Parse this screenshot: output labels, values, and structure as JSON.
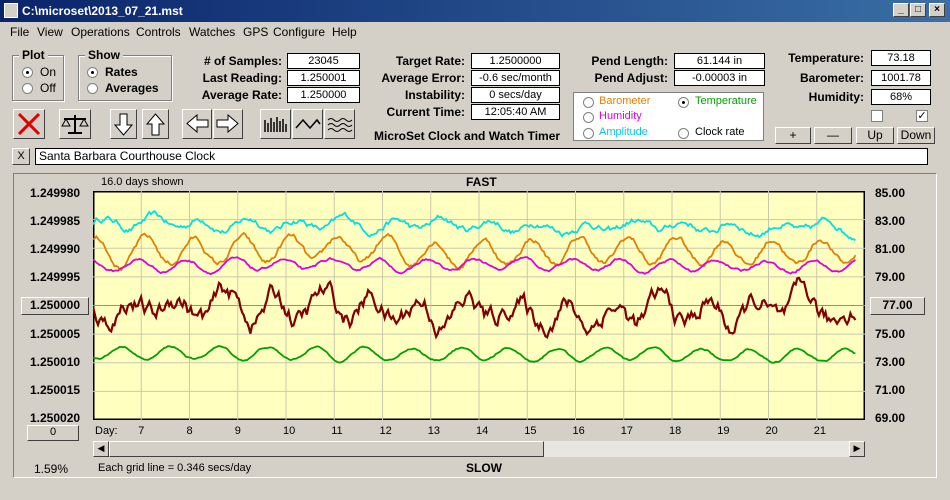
{
  "window": {
    "title": "C:\\microset\\2013_07_21.mst"
  },
  "menu": [
    "File",
    "View",
    "Operations",
    "Controls",
    "Watches",
    "GPS",
    "Configure",
    "Help"
  ],
  "plot_group": {
    "title": "Plot",
    "on_label": "On",
    "off_label": "Off",
    "selected": "On"
  },
  "show_group": {
    "title": "Show",
    "rates_label": "Rates",
    "averages_label": "Averages",
    "selected": "Rates"
  },
  "stats": {
    "samples_label": "# of Samples:",
    "samples_value": "23045",
    "last_reading_label": "Last Reading:",
    "last_reading_value": "1.250001",
    "average_rate_label": "Average Rate:",
    "average_rate_value": "1.250000",
    "target_rate_label": "Target Rate:",
    "target_rate_value": "1.2500000",
    "average_error_label": "Average Error:",
    "average_error_value": "-0.6 sec/month",
    "instability_label": "Instability:",
    "instability_value": "0 secs/day",
    "current_time_label": "Current Time:",
    "current_time_value": "12:05:40 AM",
    "pend_length_label": "Pend Length:",
    "pend_length_value": "61.144 in",
    "pend_adjust_label": "Pend Adjust:",
    "pend_adjust_value": "-0.00003 in",
    "temperature_label": "Temperature:",
    "temperature_value": "73.18",
    "barometer_label": "Barometer:",
    "barometer_value": "1001.78",
    "humidity_label": "Humidity:",
    "humidity_value": "68%"
  },
  "app_caption": "MicroSet Clock and Watch Timer",
  "legend": {
    "barometer": "Barometer",
    "temperature": "Temperature",
    "humidity": "Humidity",
    "amplitude": "Amplitude",
    "clock_rate": "Clock rate",
    "selected": "Temperature"
  },
  "adjust_buttons": {
    "plus": "+",
    "minus": "—",
    "up": "Up",
    "down": "Down"
  },
  "clock_name": "Santa Barbara Courthouse Clock",
  "close_clock": "X",
  "plot": {
    "days_shown": "16.0 days shown",
    "fast_label": "FAST",
    "slow_label": "SLOW",
    "grid_note": "Each grid line = 0.346 secs/day",
    "percent": "1.59%",
    "center_button": "1.250000",
    "zero_button": "0",
    "right_button": "77.00",
    "day_label": "Day:"
  },
  "colors": {
    "temperature": "#00a000",
    "barometer": "#e08000",
    "humidity": "#e000e0",
    "amplitude": "#00e0e0",
    "clock_rate": "#800000",
    "plot_bg": "#ffffc0"
  },
  "chart_data": {
    "type": "line",
    "x_label": "Day:",
    "x_ticks": [
      7,
      8,
      9,
      10,
      11,
      12,
      13,
      14,
      15,
      16,
      17,
      18,
      19,
      20,
      21
    ],
    "left_ticks": [
      "1.249980",
      "1.249985",
      "1.249990",
      "1.249995",
      "1.250000",
      "1.250005",
      "1.250010",
      "1.250015",
      "1.250020"
    ],
    "right_ticks": [
      "85.00",
      "83.00",
      "81.00",
      "79.00",
      "77.00",
      "75.00",
      "73.00",
      "71.00",
      "69.00"
    ],
    "xlim": [
      6.0,
      22.0
    ],
    "ylim_left": [
      1.24998,
      1.25002
    ],
    "ylim_right": [
      69,
      85
    ],
    "series": [
      {
        "name": "Amplitude",
        "color": "#00e0e0",
        "base": 82.8,
        "wave": 0.35,
        "noise": 0.35,
        "trend": -0.4
      },
      {
        "name": "Barometer",
        "color": "#e08000",
        "base": 80.8,
        "wave": 0.9,
        "noise": 0.3,
        "trend": 0.0
      },
      {
        "name": "Humidity",
        "color": "#e000e0",
        "base": 79.8,
        "wave": 0.4,
        "noise": 0.15,
        "trend": 0.0
      },
      {
        "name": "Clock rate",
        "color": "#800000",
        "base": 77.0,
        "wave": 0.8,
        "noise": 1.0,
        "trend": -0.8
      },
      {
        "name": "Temperature",
        "color": "#00a000",
        "base": 73.7,
        "wave": 0.45,
        "noise": 0.1,
        "trend": -0.2
      }
    ]
  }
}
